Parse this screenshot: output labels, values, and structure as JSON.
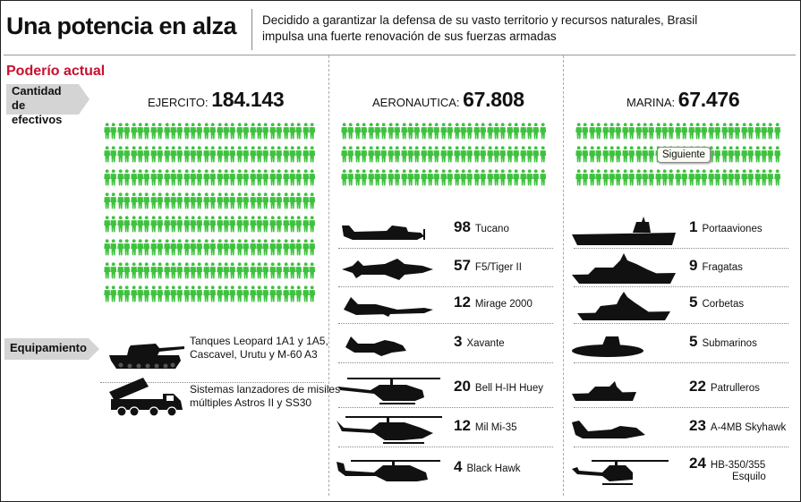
{
  "header": {
    "title": "Una potencia en alza",
    "subtitle_line1": "Decidido a garantizar la defensa de su vasto territorio y recursos naturales, Brasil",
    "subtitle_line2": "impulsa una fuerte renovación de sus fuerzas armadas"
  },
  "section_title": "Poderío actual",
  "tags": {
    "cantidad_line1": "Cantidad",
    "cantidad_line2": "de efectivos",
    "equipamiento": "Equipamiento"
  },
  "tooltip": "Siguiente",
  "colors": {
    "soldier": "#3ec23e",
    "accent_red": "#c8102e",
    "tag_gray": "#d4d4d4",
    "silhouette": "#111111"
  },
  "army_equipment": [
    {
      "icon": "tank-icon",
      "line1": "Tanques Leopard 1A1 y 1A5,",
      "line2": "Cascavel, Urutu y M-60 A3"
    },
    {
      "icon": "rocket-launcher-truck-icon",
      "line1": "Sistemas lanzadores de misiles",
      "line2": "múltiples Astros II y SS30"
    }
  ],
  "chart_data": {
    "type": "table",
    "personnel": [
      {
        "branch": "EJERCITO:",
        "value_label": "184.143",
        "value": 184143
      },
      {
        "branch": "AERONAUTICA:",
        "value_label": "67.808",
        "value": 67808
      },
      {
        "branch": "MARINA:",
        "value_label": "67.476",
        "value": 67476
      }
    ],
    "air_force_equipment": [
      {
        "count": 98,
        "name": "Tucano",
        "icon": "tucano-plane-icon"
      },
      {
        "count": 57,
        "name": "F5/Tiger II",
        "icon": "fighter-jet-icon"
      },
      {
        "count": 12,
        "name": "Mirage 2000",
        "icon": "delta-wing-jet-icon"
      },
      {
        "count": 3,
        "name": "Xavante",
        "icon": "trainer-jet-icon"
      },
      {
        "count": 20,
        "name": "Bell H-IH Huey",
        "icon": "utility-helicopter-icon"
      },
      {
        "count": 12,
        "name": "Mil Mi-35",
        "icon": "attack-helicopter-icon"
      },
      {
        "count": 4,
        "name": "Black Hawk",
        "icon": "black-hawk-helicopter-icon"
      }
    ],
    "navy_equipment": [
      {
        "count": 1,
        "name": "Portaaviones",
        "name2": "",
        "icon": "aircraft-carrier-icon"
      },
      {
        "count": 9,
        "name": "Fragatas",
        "name2": "",
        "icon": "frigate-icon"
      },
      {
        "count": 5,
        "name": "Corbetas",
        "name2": "",
        "icon": "corvette-icon"
      },
      {
        "count": 5,
        "name": "Submarinos",
        "name2": "",
        "icon": "submarine-icon"
      },
      {
        "count": 22,
        "name": "Patrulleros",
        "name2": "",
        "icon": "patrol-boat-icon"
      },
      {
        "count": 23,
        "name": "A-4MB Skyhawk",
        "name2": "",
        "icon": "skyhawk-jet-icon"
      },
      {
        "count": 24,
        "name": "HB-350/355",
        "name2": "Esquilo",
        "icon": "light-helicopter-icon"
      }
    ]
  }
}
